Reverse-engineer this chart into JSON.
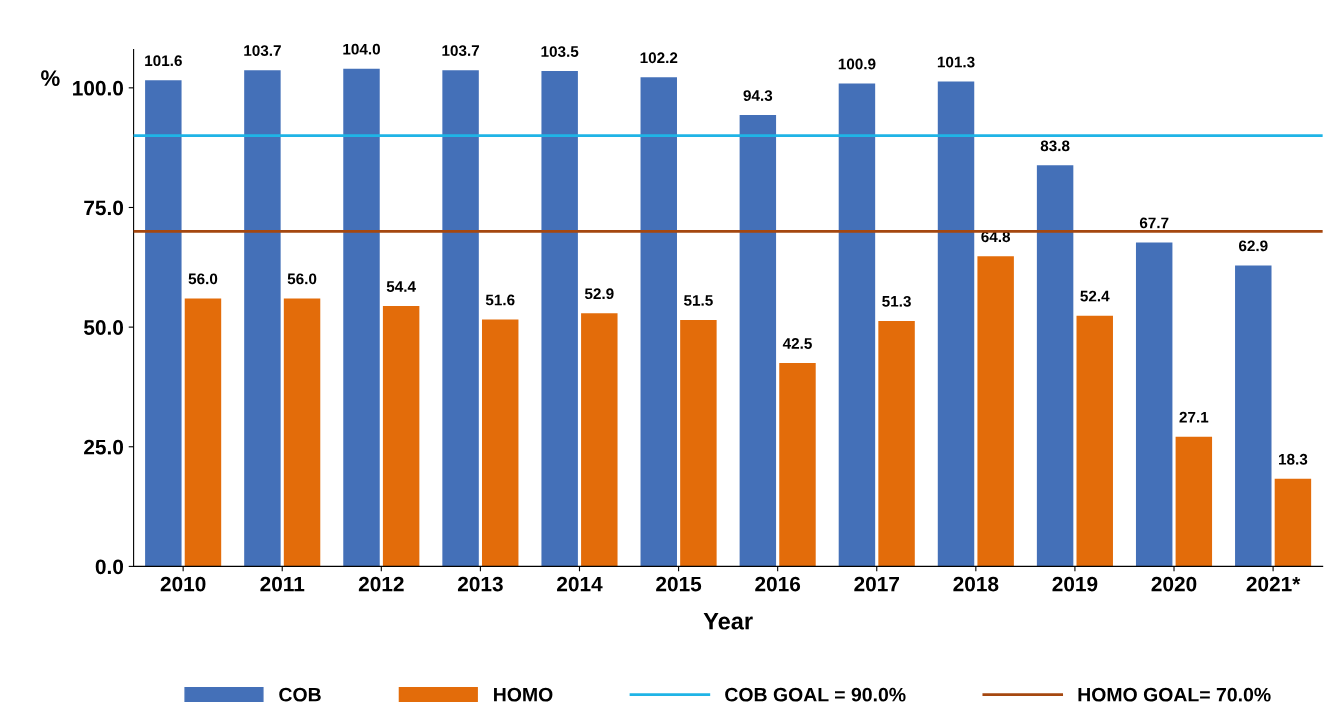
{
  "chart_data": {
    "type": "bar",
    "xlabel": "Year",
    "ylabel": "%",
    "categories": [
      "2010",
      "2011",
      "2012",
      "2013",
      "2014",
      "2015",
      "2016",
      "2017",
      "2018",
      "2019",
      "2020",
      "2021*"
    ],
    "series": [
      {
        "name": "COB",
        "color": "#4470b8",
        "values": [
          101.6,
          103.7,
          104.0,
          103.7,
          103.5,
          102.2,
          94.3,
          100.9,
          101.3,
          83.8,
          67.7,
          62.9
        ],
        "value_labels": [
          "101.6",
          "103.7",
          "104.0",
          "103.7",
          "103.5",
          "102.2",
          "94.3",
          "100.9",
          "101.3",
          "83.8",
          "67.7",
          "62.9"
        ]
      },
      {
        "name": "HOMO",
        "color": "#e36c0a",
        "values": [
          56.0,
          56.0,
          54.4,
          51.6,
          52.9,
          51.5,
          42.5,
          51.3,
          64.8,
          52.4,
          27.1,
          18.3
        ],
        "value_labels": [
          "56.0",
          "56.0",
          "54.4",
          "51.6",
          "52.9",
          "51.5",
          "42.5",
          "51.3",
          "64.8",
          "52.4",
          "27.1",
          "18.3"
        ]
      }
    ],
    "ref_lines": [
      {
        "axis": "y",
        "value": 90,
        "label": "COB GOAL = 90.0%",
        "color": "#1fb4e6",
        "line_style": "solid"
      },
      {
        "axis": "y",
        "value": 70,
        "label": "HOMO GOAL= 70.0%",
        "color": "#a5470f",
        "line_style": "solid"
      }
    ],
    "ylim": [
      0,
      108
    ],
    "yticks": [
      {
        "value": 0,
        "label": "0.0"
      },
      {
        "value": 25,
        "label": "25.0"
      },
      {
        "value": 50,
        "label": "50.0"
      },
      {
        "value": 75,
        "label": "75.0"
      },
      {
        "value": 100,
        "label": "100.0"
      }
    ],
    "grid": false,
    "legend": "bottom"
  }
}
